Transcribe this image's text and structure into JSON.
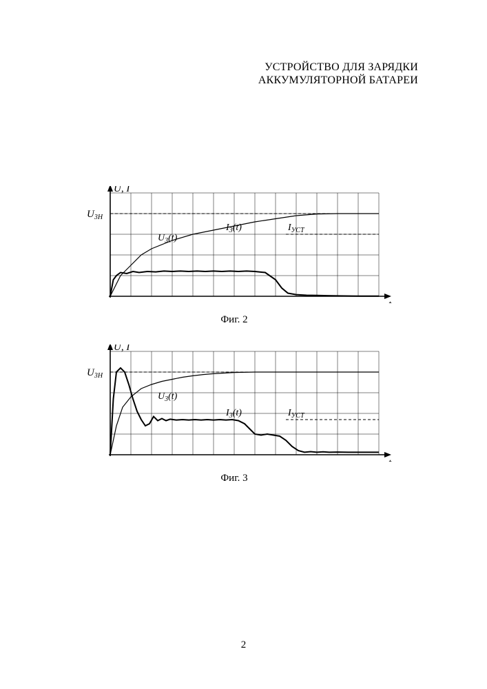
{
  "title_line1": "УСТРОЙСТВО ДЛЯ ЗАРЯДКИ",
  "title_line2": "АККУМУЛЯТОРНОЙ БАТАРЕИ",
  "page_number": "2",
  "fig2": {
    "caption": "Фиг. 2",
    "y_axis_label": "U, I",
    "x_axis_label": "t",
    "u3h_label_main": "U",
    "u3h_label_sub": "3Н",
    "u_curve_label_main": "U",
    "u_curve_label_sub": "3",
    "u_curve_label_arg": "(t)",
    "i_curve_label_main": "I",
    "i_curve_label_sub": "3",
    "i_curve_label_arg": "(t)",
    "iust_label_main": "I",
    "iust_label_sub": "УСТ",
    "grid": {
      "cols": 13,
      "rows": 5,
      "cell": 30
    },
    "colors": {
      "grid": "#000000",
      "axis": "#000000",
      "u_curve": "#000000",
      "i_curve": "#000000",
      "dash": "#000000",
      "bg": "#ffffff"
    },
    "u3h_y": 1.0,
    "iust_y": 2.0,
    "u_curve": [
      [
        0,
        5
      ],
      [
        0.5,
        4.0
      ],
      [
        1,
        3.5
      ],
      [
        1.5,
        3.0
      ],
      [
        2,
        2.7
      ],
      [
        3,
        2.3
      ],
      [
        4,
        2.0
      ],
      [
        5,
        1.8
      ],
      [
        6,
        1.6
      ],
      [
        7,
        1.4
      ],
      [
        8,
        1.25
      ],
      [
        9,
        1.1
      ],
      [
        10,
        1.02
      ],
      [
        11,
        1.0
      ],
      [
        12,
        1.0
      ],
      [
        13,
        1.0
      ]
    ],
    "i_curve": [
      [
        0,
        5
      ],
      [
        0.15,
        4.2
      ],
      [
        0.3,
        4.0
      ],
      [
        0.5,
        3.85
      ],
      [
        0.8,
        3.9
      ],
      [
        1.1,
        3.8
      ],
      [
        1.4,
        3.85
      ],
      [
        1.8,
        3.8
      ],
      [
        2.2,
        3.82
      ],
      [
        2.6,
        3.78
      ],
      [
        3.0,
        3.8
      ],
      [
        3.4,
        3.78
      ],
      [
        3.8,
        3.8
      ],
      [
        4.2,
        3.78
      ],
      [
        4.6,
        3.8
      ],
      [
        5.0,
        3.78
      ],
      [
        5.4,
        3.8
      ],
      [
        5.8,
        3.78
      ],
      [
        6.2,
        3.8
      ],
      [
        6.6,
        3.78
      ],
      [
        7.0,
        3.8
      ],
      [
        7.5,
        3.85
      ],
      [
        8.0,
        4.2
      ],
      [
        8.3,
        4.6
      ],
      [
        8.6,
        4.85
      ],
      [
        9.0,
        4.92
      ],
      [
        9.5,
        4.95
      ],
      [
        10,
        4.96
      ],
      [
        10.5,
        4.97
      ],
      [
        11,
        4.98
      ],
      [
        12,
        4.99
      ],
      [
        13,
        4.99
      ]
    ]
  },
  "fig3": {
    "caption": "Фиг. 3",
    "y_axis_label": "U, I",
    "x_axis_label": "t",
    "u3h_label_main": "U",
    "u3h_label_sub": "3Н",
    "u_curve_label_main": "U",
    "u_curve_label_sub": "3",
    "u_curve_label_arg": "(t)",
    "i_curve_label_main": "I",
    "i_curve_label_sub": "3",
    "i_curve_label_arg": "(t)",
    "iust_label_main": "I",
    "iust_label_sub": "УСТ",
    "grid": {
      "cols": 13,
      "rows": 5,
      "cell": 30
    },
    "colors": {
      "grid": "#000000",
      "axis": "#000000",
      "u_curve": "#000000",
      "i_curve": "#000000",
      "dash": "#000000",
      "bg": "#ffffff"
    },
    "u3h_y": 1.0,
    "iust_y": 3.3,
    "u_curve": [
      [
        0,
        5
      ],
      [
        0.3,
        3.6
      ],
      [
        0.6,
        2.7
      ],
      [
        1.0,
        2.2
      ],
      [
        1.5,
        1.8
      ],
      [
        2.0,
        1.6
      ],
      [
        2.5,
        1.45
      ],
      [
        3.0,
        1.35
      ],
      [
        3.5,
        1.25
      ],
      [
        4.0,
        1.18
      ],
      [
        4.5,
        1.12
      ],
      [
        5.0,
        1.08
      ],
      [
        5.5,
        1.05
      ],
      [
        6.0,
        1.02
      ],
      [
        7.0,
        1.0
      ],
      [
        8.0,
        1.0
      ],
      [
        10.0,
        1.0
      ],
      [
        13.0,
        1.0
      ]
    ],
    "i_curve": [
      [
        0,
        5
      ],
      [
        0.15,
        2.3
      ],
      [
        0.3,
        1.0
      ],
      [
        0.5,
        0.8
      ],
      [
        0.7,
        1.0
      ],
      [
        0.9,
        1.6
      ],
      [
        1.1,
        2.3
      ],
      [
        1.3,
        2.9
      ],
      [
        1.5,
        3.3
      ],
      [
        1.7,
        3.6
      ],
      [
        1.9,
        3.5
      ],
      [
        2.1,
        3.15
      ],
      [
        2.3,
        3.35
      ],
      [
        2.5,
        3.25
      ],
      [
        2.7,
        3.35
      ],
      [
        2.9,
        3.28
      ],
      [
        3.2,
        3.32
      ],
      [
        3.5,
        3.3
      ],
      [
        3.8,
        3.32
      ],
      [
        4.1,
        3.3
      ],
      [
        4.4,
        3.32
      ],
      [
        4.7,
        3.3
      ],
      [
        5.0,
        3.32
      ],
      [
        5.3,
        3.3
      ],
      [
        5.6,
        3.32
      ],
      [
        5.9,
        3.3
      ],
      [
        6.2,
        3.35
      ],
      [
        6.5,
        3.5
      ],
      [
        6.8,
        3.8
      ],
      [
        7.0,
        4.0
      ],
      [
        7.3,
        4.05
      ],
      [
        7.6,
        4.0
      ],
      [
        7.9,
        4.05
      ],
      [
        8.2,
        4.1
      ],
      [
        8.5,
        4.3
      ],
      [
        8.8,
        4.6
      ],
      [
        9.1,
        4.8
      ],
      [
        9.4,
        4.88
      ],
      [
        9.7,
        4.85
      ],
      [
        10.0,
        4.88
      ],
      [
        10.3,
        4.86
      ],
      [
        10.6,
        4.88
      ],
      [
        11.0,
        4.87
      ],
      [
        11.5,
        4.88
      ],
      [
        12.0,
        4.88
      ],
      [
        12.5,
        4.88
      ],
      [
        13.0,
        4.88
      ]
    ]
  }
}
